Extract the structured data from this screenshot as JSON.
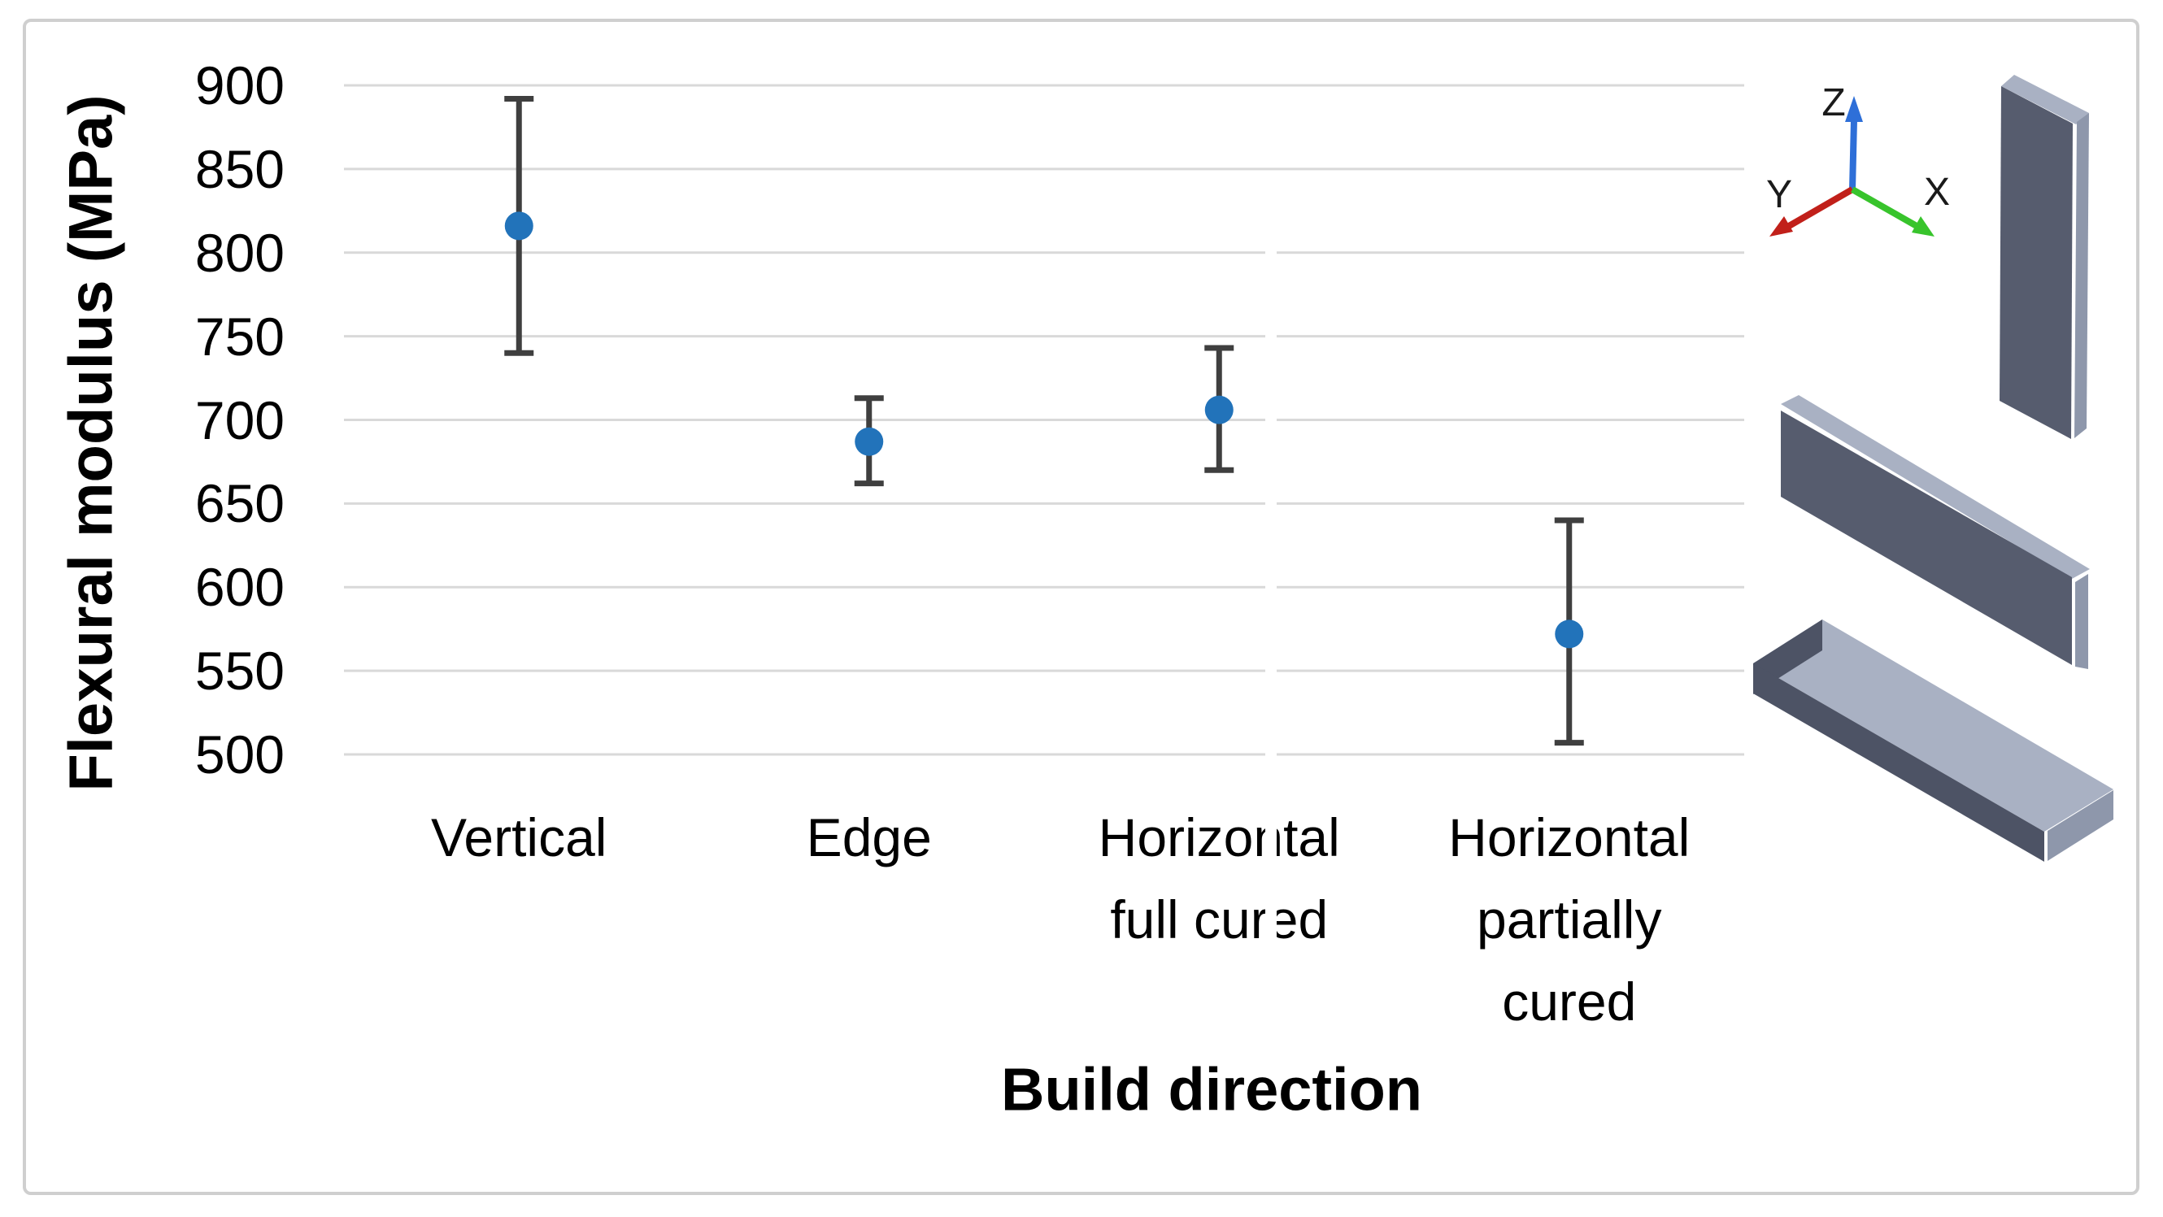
{
  "chart_data": {
    "type": "scatter",
    "title": "",
    "xlabel": "Build direction",
    "ylabel": "Flexural modulus (MPa)",
    "ylim": [
      500,
      900
    ],
    "yticks": [
      900,
      850,
      800,
      750,
      700,
      650,
      600,
      550,
      500
    ],
    "grid": true,
    "legend": "none",
    "categories": [
      "Vertical",
      "Edge",
      "Horizontal full cured",
      "Horizontal partially cured"
    ],
    "category_label_lines": [
      [
        "Vertical"
      ],
      [
        "Edge"
      ],
      [
        "Horizontal",
        "full cured"
      ],
      [
        "Horizontal",
        "partially",
        "cured"
      ]
    ],
    "series": [
      {
        "name": "Flexural modulus (MPa)",
        "values": [
          816,
          687,
          706,
          572
        ],
        "error_plus": [
          76,
          26,
          37,
          68
        ],
        "error_minus": [
          76,
          25,
          36,
          65
        ]
      }
    ],
    "marker_color": "#2273ba",
    "error_bar_color": "#3f3f3f",
    "gridline_color": "#d9d9d9",
    "text_color": "#000000"
  },
  "triad": {
    "x_label": "X",
    "y_label": "Y",
    "z_label": "Z",
    "x_color": "#38c42c",
    "y_color": "#c1201a",
    "z_color": "#2e6fd8"
  },
  "specimens": {
    "items": [
      "vertical-specimen-3d",
      "edge-specimen-3d",
      "horizontal-specimen-3d"
    ],
    "colors": {
      "face_top": "#a9b1c3",
      "face_front": "#565c6e",
      "face_front_dark": "#4d5365",
      "face_side": "#8e97ab"
    }
  },
  "frame": {
    "border_color": "#cfcfcf",
    "background": "#ffffff"
  }
}
